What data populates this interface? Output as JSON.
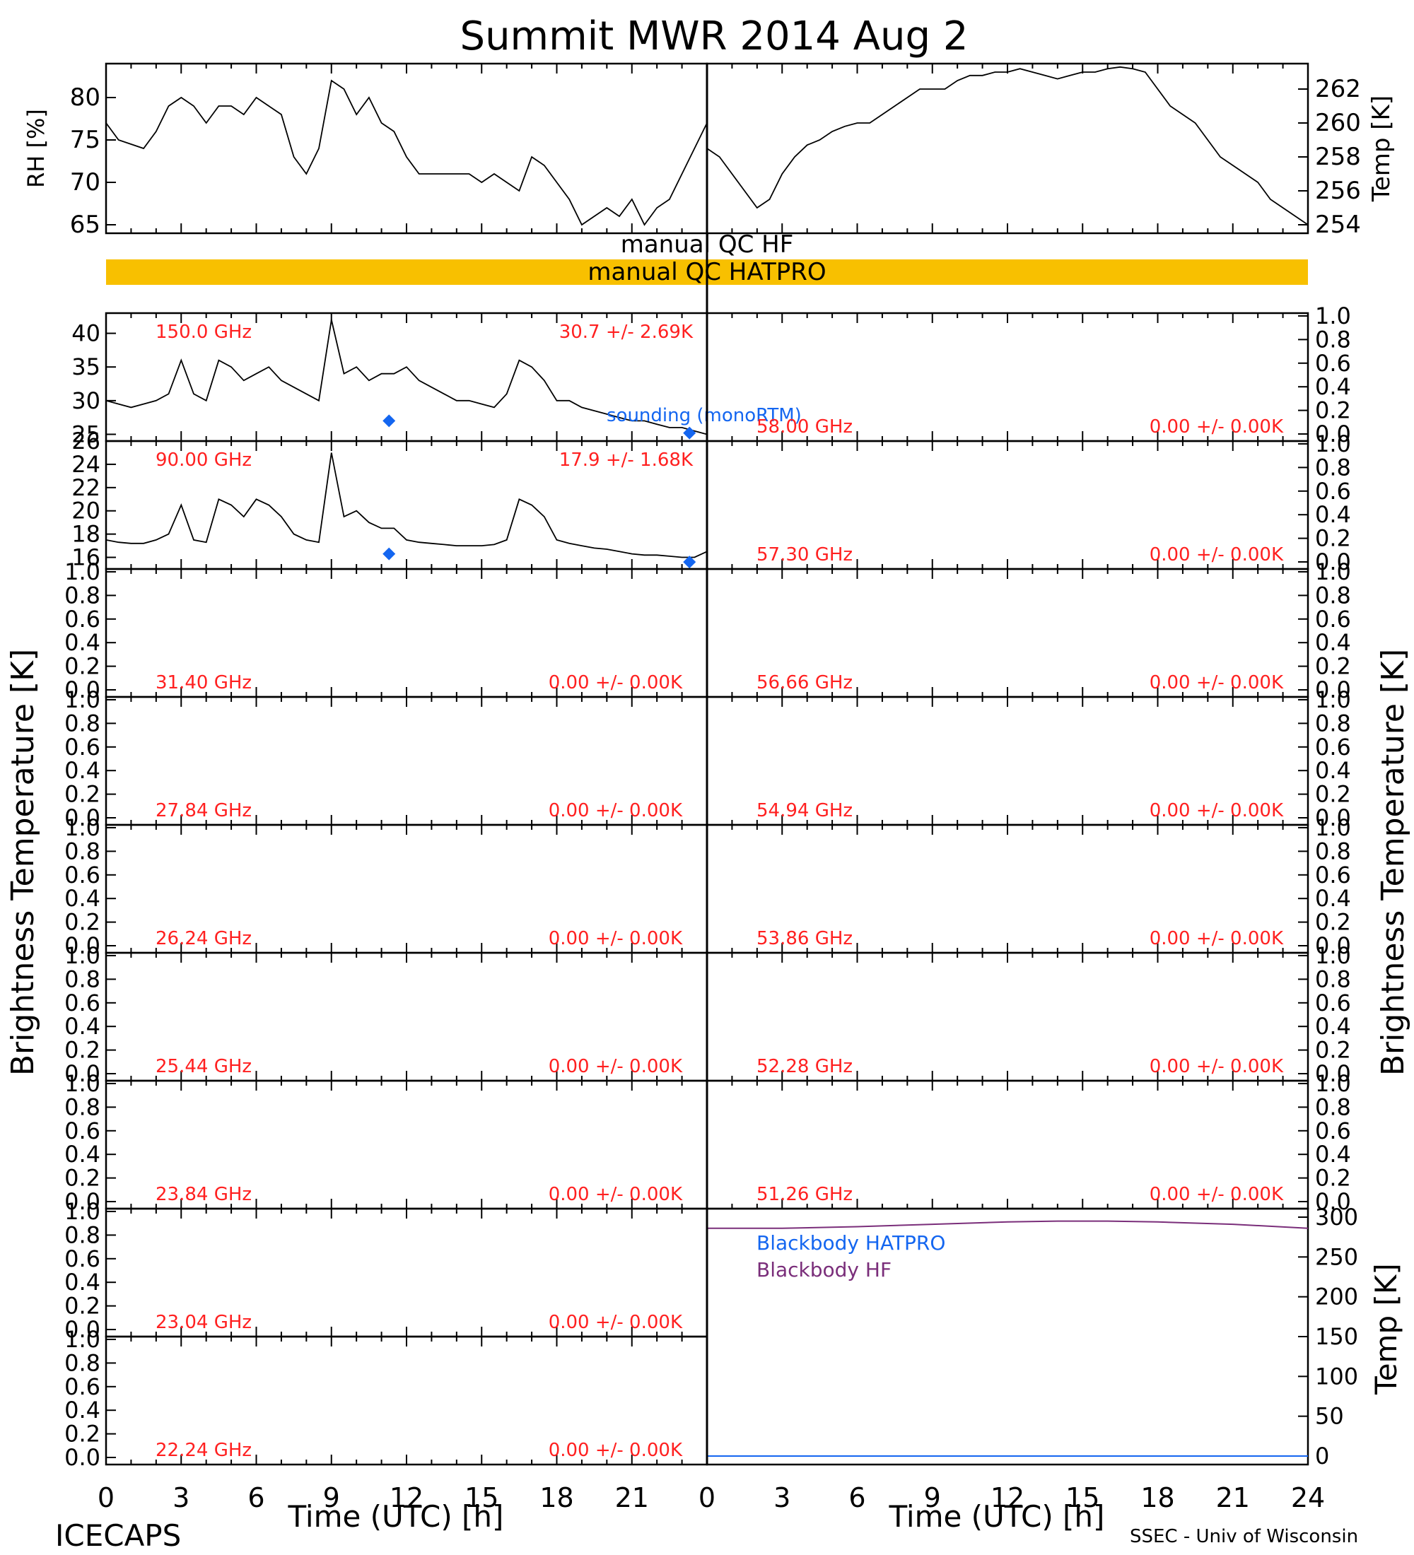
{
  "title": "Summit MWR 2014 Aug  2",
  "footer": {
    "left": "ICECAPS",
    "right": "SSEC - Univ of Wisconsin"
  },
  "colors": {
    "qc_bar": "#F8C000",
    "label_red": "#FF2020",
    "sounding_blue": "#1466F0",
    "bb_hf": "#7A2E7A",
    "bb_hatpro": "#1466F0",
    "trace": "#000000"
  },
  "qc": {
    "hf_label": "manual  QC  HF",
    "hatpro_label": "manual  QC  HATPRO"
  },
  "axes": {
    "x_title": "Time (UTC) [h]",
    "x_ticks": [
      "0",
      "3",
      "6",
      "9",
      "12",
      "15",
      "18",
      "21",
      "24"
    ],
    "left_x_ticks": [
      "0",
      "3",
      "6",
      "9",
      "12",
      "15",
      "18",
      "21"
    ],
    "y_left_title": "Brightness Temperature [K]",
    "y_right_title": "Brightness Temperature [K]",
    "rh_ylabel": "RH [%]",
    "temp_ylabel": "Temp [K]",
    "bb_ylabel": "Temp [K]"
  },
  "chart_data": [
    {
      "type": "line",
      "id": "rh",
      "ylabel": "RH [%]",
      "xlim": [
        0,
        24
      ],
      "ylim": [
        64,
        84
      ],
      "yticks": [
        "65",
        "70",
        "75",
        "80"
      ],
      "x": [
        0,
        0.5,
        1,
        1.5,
        2,
        2.5,
        3,
        3.5,
        4,
        4.5,
        5,
        5.5,
        6,
        6.5,
        7,
        7.5,
        8,
        8.5,
        9,
        9.5,
        10,
        10.5,
        11,
        11.5,
        12,
        12.5,
        13,
        13.5,
        14,
        14.5,
        15,
        15.5,
        16,
        16.5,
        17,
        17.5,
        18,
        18.5,
        19,
        19.5,
        20,
        20.5,
        21,
        21.5,
        22,
        22.5,
        23,
        23.5,
        24
      ],
      "y": [
        77,
        75,
        74.5,
        74,
        76,
        79,
        80,
        79,
        77,
        79,
        79,
        78,
        80,
        79,
        78,
        73,
        71,
        74,
        82,
        81,
        78,
        80,
        77,
        76,
        73,
        71,
        71,
        71,
        71,
        71,
        70,
        71,
        70,
        69,
        73,
        72,
        70,
        68,
        65,
        66,
        67,
        66,
        68,
        65,
        67,
        68,
        71,
        74,
        77
      ]
    },
    {
      "type": "line",
      "id": "temp",
      "ylabel": "Temp [K]",
      "xlim": [
        0,
        24
      ],
      "ylim": [
        253.5,
        263.5
      ],
      "yticks": [
        "254",
        "256",
        "258",
        "260",
        "262"
      ],
      "x": [
        0,
        0.5,
        1,
        1.5,
        2,
        2.5,
        3,
        3.5,
        4,
        4.5,
        5,
        5.5,
        6,
        6.5,
        7,
        7.5,
        8,
        8.5,
        9,
        9.5,
        10,
        10.5,
        11,
        11.5,
        12,
        12.5,
        13,
        13.5,
        14,
        14.5,
        15,
        15.5,
        16,
        16.5,
        17,
        17.5,
        18,
        18.5,
        19,
        19.5,
        20,
        20.5,
        21,
        21.5,
        22,
        22.5,
        23,
        23.5,
        24
      ],
      "y": [
        258.5,
        258,
        257,
        256,
        255,
        255.5,
        257,
        258,
        258.7,
        259,
        259.5,
        259.8,
        260,
        260,
        260.5,
        261,
        261.5,
        262,
        262,
        262,
        262.5,
        262.8,
        262.8,
        263,
        263,
        263.2,
        263,
        262.8,
        262.6,
        262.8,
        263,
        263,
        263.2,
        263.3,
        263.2,
        263,
        262,
        261,
        260.5,
        260,
        259,
        258,
        257.5,
        257,
        256.5,
        255.5,
        255,
        254.5,
        254
      ]
    },
    {
      "type": "line",
      "id": "tb150",
      "label_freq": "150.0 GHz",
      "label_stat": "30.7 +/-   2.69K",
      "ylim": [
        24,
        43
      ],
      "yticks": [
        "25",
        "30",
        "35",
        "40"
      ],
      "x": [
        0,
        0.5,
        1,
        1.5,
        2,
        2.5,
        3,
        3.5,
        4,
        4.5,
        5,
        5.5,
        6,
        6.5,
        7,
        7.5,
        8,
        8.5,
        9,
        9.5,
        10,
        10.5,
        11,
        11.5,
        12,
        12.5,
        13,
        13.5,
        14,
        14.5,
        15,
        15.5,
        16,
        16.5,
        17,
        17.5,
        18,
        18.5,
        19,
        19.5,
        20,
        20.5,
        21,
        21.5,
        22,
        22.5,
        23,
        23.5,
        24
      ],
      "y": [
        30,
        29.5,
        29,
        29.5,
        30,
        31,
        36,
        31,
        30,
        36,
        35,
        33,
        34,
        35,
        33,
        32,
        31,
        30,
        42,
        34,
        35,
        33,
        34,
        34,
        35,
        33,
        32,
        31,
        30,
        30,
        29.5,
        29,
        31,
        36,
        35,
        33,
        30,
        30,
        29,
        28.5,
        28,
        27.5,
        27,
        27,
        26.5,
        26,
        26,
        25.5,
        25
      ],
      "sounding_x": [
        11.3,
        23.3
      ],
      "sounding_y": [
        27,
        25.2
      ],
      "sounding_label": "sounding (monoRTM)"
    },
    {
      "type": "line",
      "id": "tb90",
      "label_freq": "90.00 GHz",
      "label_stat": "17.9 +/-   1.68K",
      "ylim": [
        15,
        26
      ],
      "yticks": [
        "16",
        "18",
        "20",
        "22",
        "24",
        "26"
      ],
      "x": [
        0,
        0.5,
        1,
        1.5,
        2,
        2.5,
        3,
        3.5,
        4,
        4.5,
        5,
        5.5,
        6,
        6.5,
        7,
        7.5,
        8,
        8.5,
        9,
        9.5,
        10,
        10.5,
        11,
        11.5,
        12,
        12.5,
        13,
        13.5,
        14,
        14.5,
        15,
        15.5,
        16,
        16.5,
        17,
        17.5,
        18,
        18.5,
        19,
        19.5,
        20,
        20.5,
        21,
        21.5,
        22,
        22.5,
        23,
        23.5,
        24
      ],
      "y": [
        17.5,
        17.3,
        17.2,
        17.2,
        17.5,
        18,
        20.5,
        17.5,
        17.3,
        21,
        20.5,
        19.5,
        21,
        20.5,
        19.5,
        18,
        17.5,
        17.3,
        25,
        19.5,
        20,
        19,
        18.5,
        18.5,
        17.5,
        17.3,
        17.2,
        17.1,
        17,
        17,
        17,
        17.1,
        17.5,
        21,
        20.5,
        19.5,
        17.5,
        17.2,
        17,
        16.8,
        16.7,
        16.5,
        16.3,
        16.2,
        16.2,
        16.1,
        16,
        16,
        16.5
      ],
      "sounding_x": [
        11.3,
        23.3
      ],
      "sounding_y": [
        16.3,
        15.6
      ]
    },
    {
      "type": "line",
      "id": "bb",
      "ylabel": "Temp [K]",
      "xlim": [
        0,
        24
      ],
      "ylim": [
        0,
        300
      ],
      "yticks": [
        "0",
        "50",
        "100",
        "150",
        "200",
        "250",
        "300"
      ],
      "series": [
        {
          "name": "Blackbody HF",
          "x": [
            0,
            3,
            6,
            9,
            12,
            14,
            16,
            18,
            21,
            24
          ],
          "y": [
            286,
            286,
            288,
            291,
            294,
            295,
            295,
            294,
            291,
            286
          ]
        },
        {
          "name": "Blackbody HATPRO",
          "x": [
            0,
            24
          ],
          "y": [
            0,
            0
          ]
        }
      ]
    }
  ],
  "empty_ticks": [
    "0.0",
    "0.2",
    "0.4",
    "0.6",
    "0.8",
    "1.0"
  ],
  "left_panels": [
    {
      "freq": "31.40 GHz",
      "stat": "0.00 +/-   0.00K"
    },
    {
      "freq": "27.84 GHz",
      "stat": "0.00 +/-   0.00K"
    },
    {
      "freq": "26.24 GHz",
      "stat": "0.00 +/-   0.00K"
    },
    {
      "freq": "25.44 GHz",
      "stat": "0.00 +/-   0.00K"
    },
    {
      "freq": "23.84 GHz",
      "stat": "0.00 +/-   0.00K"
    },
    {
      "freq": "23.04 GHz",
      "stat": "0.00 +/-   0.00K"
    },
    {
      "freq": "22.24 GHz",
      "stat": "0.00 +/-   0.00K"
    }
  ],
  "right_panels": [
    {
      "freq": "58.00 GHz",
      "stat": "0.00 +/-   0.00K"
    },
    {
      "freq": "57.30 GHz",
      "stat": "0.00 +/-   0.00K"
    },
    {
      "freq": "56.66 GHz",
      "stat": "0.00 +/-   0.00K"
    },
    {
      "freq": "54.94 GHz",
      "stat": "0.00 +/-   0.00K"
    },
    {
      "freq": "53.86 GHz",
      "stat": "0.00 +/-   0.00K"
    },
    {
      "freq": "52.28 GHz",
      "stat": "0.00 +/-   0.00K"
    },
    {
      "freq": "51.26 GHz",
      "stat": "0.00 +/-   0.00K"
    }
  ]
}
